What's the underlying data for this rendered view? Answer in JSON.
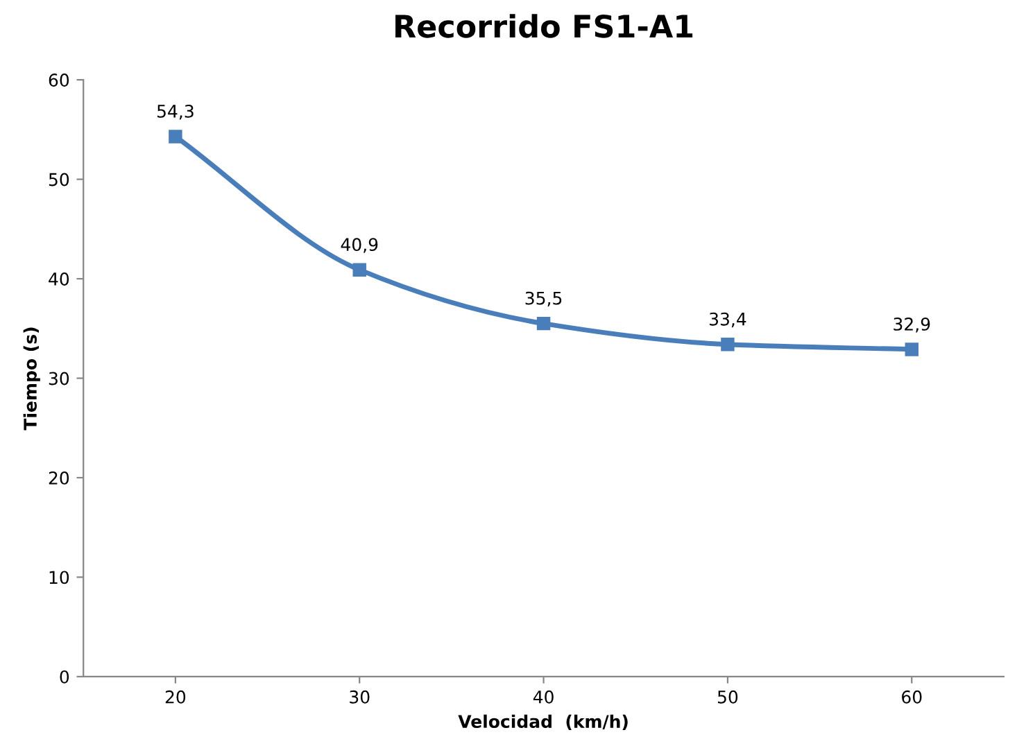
{
  "chart_data": {
    "type": "line",
    "title": "Recorrido FS1-A1",
    "xlabel": "Velocidad  (km/h)",
    "ylabel": "Tiempo (s)",
    "categories": [
      "20",
      "30",
      "40",
      "50",
      "60"
    ],
    "series": [
      {
        "color": "#4a7ebb",
        "values": [
          54.3,
          40.9,
          35.5,
          33.4,
          32.9
        ],
        "value_labels": [
          "54,3",
          "40,9",
          "35,5",
          "33,4",
          "32,9"
        ]
      }
    ],
    "ylim": [
      0,
      60
    ],
    "yticks": [
      0,
      10,
      20,
      30,
      40,
      50,
      60
    ],
    "grid": false,
    "marker": "square",
    "line_style": "solid"
  }
}
